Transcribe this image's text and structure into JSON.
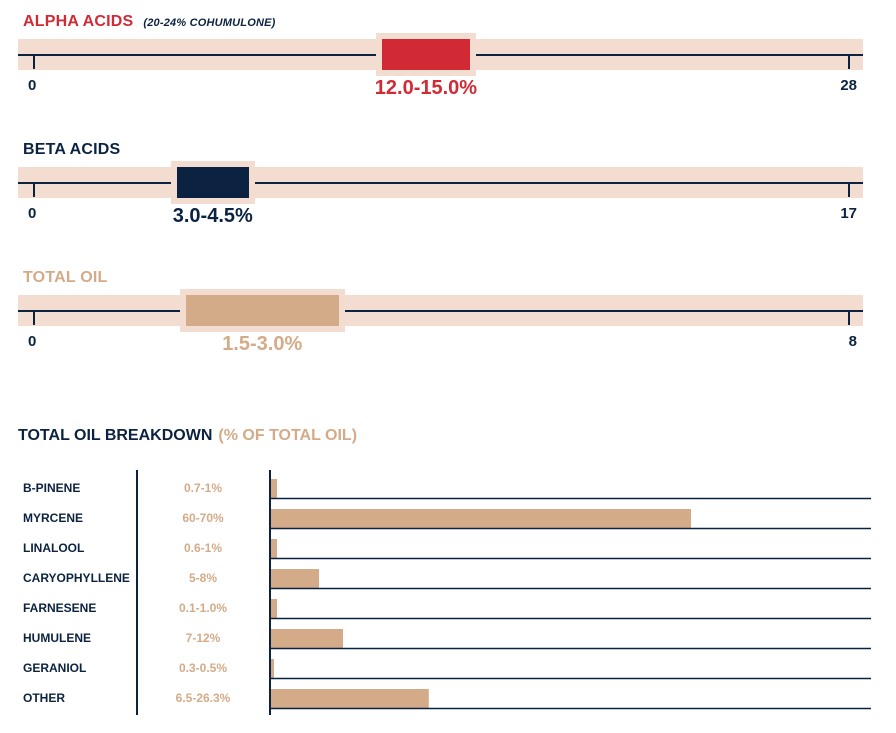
{
  "colors": {
    "navy": "#0b2340",
    "red": "#d22a35",
    "tan": "#d4ab88",
    "track": "#f2ddd0"
  },
  "ranges": [
    {
      "title": "ALPHA ACIDS",
      "note": "(20-24% COHUMULONE)",
      "label": "12.0-15.0%",
      "min": 0,
      "max": 28,
      "low": 12.0,
      "high": 15.0,
      "min_label": "0",
      "max_label": "28",
      "color": "#d22a35"
    },
    {
      "title": "BETA ACIDS",
      "note": "",
      "label": "3.0-4.5%",
      "min": 0,
      "max": 17,
      "low": 3.0,
      "high": 4.5,
      "min_label": "0",
      "max_label": "17",
      "color": "#0b2340"
    },
    {
      "title": "TOTAL OIL",
      "note": "",
      "label": "1.5-3.0%",
      "min": 0,
      "max": 8,
      "low": 1.5,
      "high": 3.0,
      "min_label": "0",
      "max_label": "8",
      "color": "#d4ab88"
    }
  ],
  "breakdown": {
    "title": "TOTAL OIL BREAKDOWN",
    "subtitle": "(% OF TOTAL OIL)"
  },
  "chart_data": {
    "type": "bar",
    "orientation": "horizontal",
    "title": "TOTAL OIL BREAKDOWN (% OF TOTAL OIL)",
    "categories": [
      "B-PINENE",
      "MYRCENE",
      "LINALOOL",
      "CARYOPHYLLENE",
      "FARNESENE",
      "HUMULENE",
      "GERANIOL",
      "OTHER"
    ],
    "range_labels": [
      "0.7-1%",
      "60-70%",
      "0.6-1%",
      "5-8%",
      "0.1-1.0%",
      "7-12%",
      "0.3-0.5%",
      "6.5-26.3%"
    ],
    "values": [
      1,
      70,
      1,
      8,
      1.0,
      12,
      0.5,
      26.3
    ],
    "xlim": [
      0,
      100
    ],
    "grid": false
  }
}
